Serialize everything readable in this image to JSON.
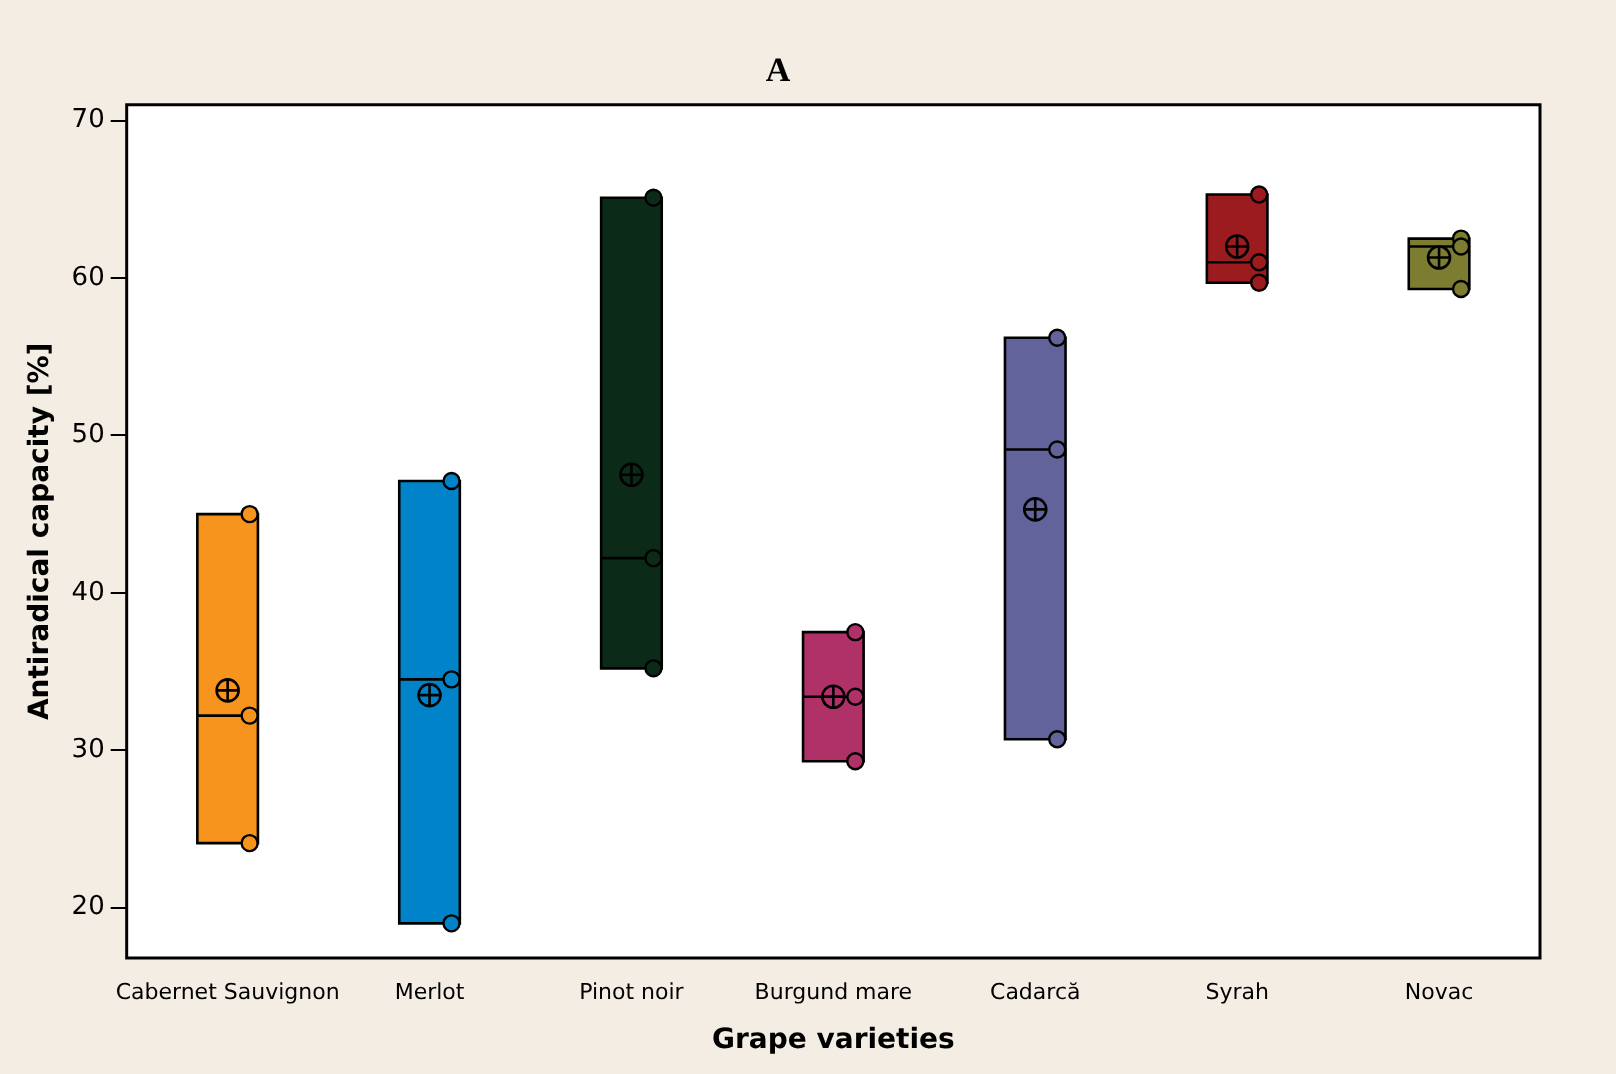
{
  "chart_data": {
    "type": "box",
    "title": "A",
    "xlabel": "Grape varieties",
    "ylabel": "Antiradical capacity [%]",
    "categories": [
      "Cabernet Sauvignon",
      "Merlot",
      "Pinot noir",
      "Burgund mare",
      "Cadarcă",
      "Syrah",
      "Novac"
    ],
    "colors": [
      "#f7941d",
      "#0083c8",
      "#0b2a17",
      "#b03068",
      "#63639b",
      "#9b1b1f",
      "#7d7d32"
    ],
    "boxes": [
      {
        "low": 24.1,
        "q1": 24.1,
        "median": 32.2,
        "q3": 45,
        "high": 45,
        "mean": 33.8
      },
      {
        "low": 19,
        "q1": 19,
        "median": 34.5,
        "q3": 47.1,
        "high": 47.1,
        "mean": 33.5
      },
      {
        "low": 35.2,
        "q1": 35.2,
        "median": 42.2,
        "q3": 65.1,
        "high": 65.1,
        "mean": 47.5
      },
      {
        "low": 29.3,
        "q1": 29.3,
        "median": 33.4,
        "q3": 37.5,
        "high": 37.5,
        "mean": 33.4
      },
      {
        "low": 30.7,
        "q1": 30.7,
        "median": 49.1,
        "q3": 56.2,
        "high": 56.2,
        "mean": 45.3
      },
      {
        "low": 59.7,
        "q1": 59.7,
        "median": 61,
        "q3": 65.3,
        "high": 65.3,
        "mean": 62
      },
      {
        "low": 59.3,
        "q1": 59.3,
        "median": 62,
        "q3": 62.5,
        "high": 62.5,
        "mean": 61.3
      }
    ],
    "series": [
      {
        "type": "scatter",
        "color": "#000000",
        "marker": "circle",
        "x": [
          "Cabernet Sauvignon",
          "Cabernet Sauvignon",
          "Cabernet Sauvignon",
          "Merlot",
          "Merlot",
          "Merlot",
          "Pinot noir",
          "Pinot noir",
          "Pinot noir",
          "Burgund mare",
          "Burgund mare",
          "Burgund mare",
          "Cadarcă",
          "Cadarcă",
          "Cadarcă",
          "Syrah",
          "Syrah",
          "Syrah",
          "Novac",
          "Novac",
          "Novac"
        ],
        "values": [
          45,
          24.1,
          32.2,
          47.1,
          34.5,
          19,
          65.1,
          42.2,
          35.2,
          37.5,
          33.4,
          29.3,
          56.2,
          49.1,
          30.7,
          65.3,
          61,
          59.7,
          62.5,
          62,
          59.3
        ]
      }
    ],
    "ylim": [
      16.8,
      71
    ],
    "yticks": [
      20,
      30,
      40,
      50,
      60,
      70
    ],
    "grid": false,
    "legend": false
  }
}
